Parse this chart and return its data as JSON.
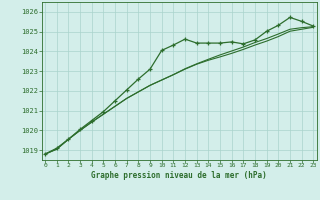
{
  "bg_color": "#d3eeea",
  "grid_color": "#aad4cc",
  "line_color": "#2d6e2d",
  "title": "Graphe pression niveau de la mer (hPa)",
  "xlim": [
    -0.3,
    23.3
  ],
  "ylim": [
    1018.5,
    1026.5
  ],
  "yticks": [
    1019,
    1020,
    1021,
    1022,
    1023,
    1024,
    1025,
    1026
  ],
  "xticks": [
    0,
    1,
    2,
    3,
    4,
    5,
    6,
    7,
    8,
    9,
    10,
    11,
    12,
    13,
    14,
    15,
    16,
    17,
    18,
    19,
    20,
    21,
    22,
    23
  ],
  "series1": [
    1018.8,
    1019.1,
    1019.55,
    1020.05,
    1020.5,
    1020.95,
    1021.5,
    1022.05,
    1022.6,
    1023.1,
    1024.05,
    1024.32,
    1024.62,
    1024.42,
    1024.42,
    1024.42,
    1024.48,
    1024.38,
    1024.58,
    1025.02,
    1025.32,
    1025.72,
    1025.52,
    1025.28
  ],
  "series2": [
    1018.8,
    1019.05,
    1019.55,
    1020.0,
    1020.42,
    1020.82,
    1021.22,
    1021.62,
    1021.95,
    1022.28,
    1022.55,
    1022.82,
    1023.1,
    1023.35,
    1023.55,
    1023.72,
    1023.9,
    1024.1,
    1024.32,
    1024.52,
    1024.75,
    1025.02,
    1025.12,
    1025.22
  ],
  "series3": [
    1018.8,
    1019.05,
    1019.55,
    1020.0,
    1020.42,
    1020.82,
    1021.22,
    1021.62,
    1021.95,
    1022.28,
    1022.55,
    1022.82,
    1023.12,
    1023.37,
    1023.6,
    1023.82,
    1024.02,
    1024.22,
    1024.45,
    1024.65,
    1024.88,
    1025.12,
    1025.2,
    1025.25
  ]
}
